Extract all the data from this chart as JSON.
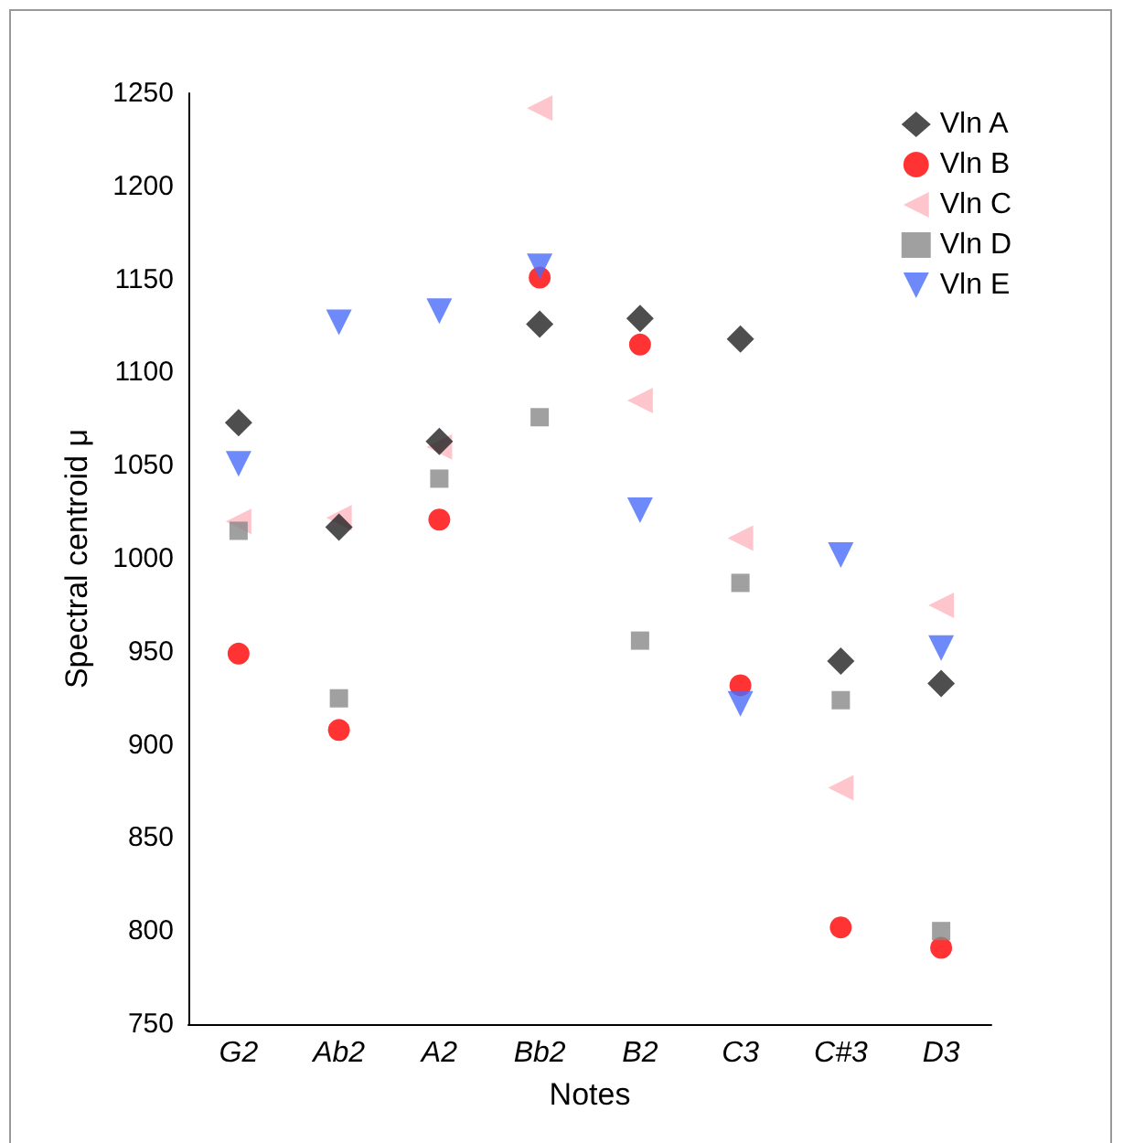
{
  "chart_data": {
    "type": "scatter",
    "xlabel": "Notes",
    "ylabel": "Spectral centroid μ",
    "categories": [
      "G2",
      "Ab2",
      "A2",
      "Bb2",
      "B2",
      "C3",
      "C#3",
      "D3"
    ],
    "ylim": [
      750,
      1250
    ],
    "yticks": [
      750,
      800,
      850,
      900,
      950,
      1000,
      1050,
      1100,
      1150,
      1200,
      1250
    ],
    "grid": false,
    "legend": "top right",
    "series": [
      {
        "name": "Vln A",
        "color": "#222222",
        "marker": "diamond",
        "values": [
          1073,
          1017,
          1063,
          1126,
          1129,
          1118,
          945,
          933
        ]
      },
      {
        "name": "Vln B",
        "color": "#ff0000",
        "marker": "circle",
        "values": [
          949,
          908,
          1021,
          1151,
          1115,
          932,
          802,
          791
        ]
      },
      {
        "name": "Vln C",
        "color": "#ffb6c1",
        "marker": "triangle-left",
        "values": [
          1020,
          1022,
          1060,
          1242,
          1085,
          1011,
          877,
          975
        ]
      },
      {
        "name": "Vln D",
        "color": "#888888",
        "marker": "square",
        "values": [
          1015,
          925,
          1043,
          1076,
          956,
          987,
          924,
          800
        ]
      },
      {
        "name": "Vln E",
        "color": "#4a6cf7",
        "marker": "triangle-down",
        "values": [
          1051,
          1127,
          1133,
          1157,
          1026,
          922,
          1002,
          952
        ]
      }
    ]
  }
}
